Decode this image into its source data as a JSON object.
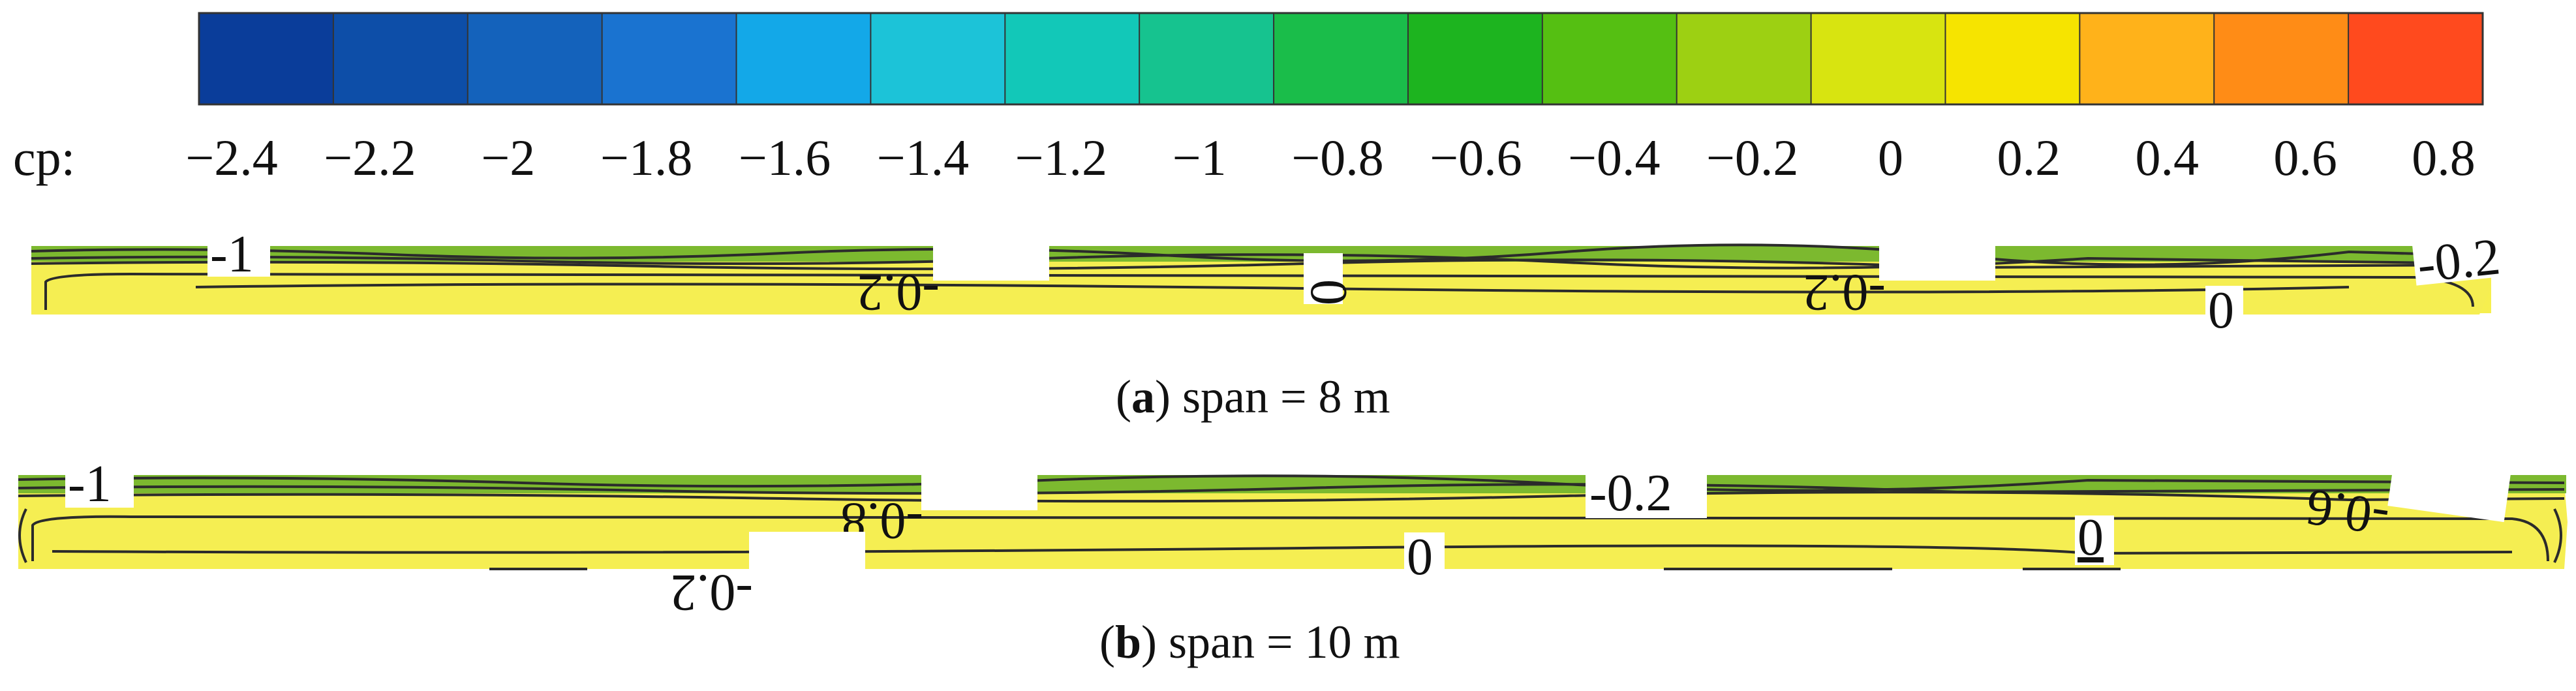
{
  "colorbar": {
    "label": "cp:",
    "colors": [
      "#0a3d9a",
      "#0d4ea8",
      "#1462bb",
      "#1a73d0",
      "#13a8e8",
      "#1cc3d8",
      "#12c8b8",
      "#16c38f",
      "#1abd4a",
      "#1db41f",
      "#55bf12",
      "#9dd012",
      "#d8e410",
      "#f6e400",
      "#ffb21a",
      "#ff8c16",
      "#ff4a1e"
    ],
    "ticks": [
      "−2.4",
      "−2.2",
      "−2",
      "−1.8",
      "−1.6",
      "−1.4",
      "−1.2",
      "−1",
      "−0.8",
      "−0.6",
      "−0.4",
      "−0.2",
      "0",
      "0.2",
      "0.4",
      "0.6",
      "0.8"
    ]
  },
  "panels": [
    {
      "id": "a",
      "caption_letter": "a",
      "caption_rest": ") span = 8 m",
      "contour_labels": [
        "-1",
        "-0.2",
        "0",
        "-0.2",
        "-0.2",
        "0"
      ]
    },
    {
      "id": "b",
      "caption_letter": "b",
      "caption_rest": ") span = 10 m",
      "contour_labels": [
        "-1",
        "-0.8",
        "-0.2",
        "-0.6",
        "-0.2",
        "0",
        "0"
      ]
    }
  ],
  "caption_open": "("
}
